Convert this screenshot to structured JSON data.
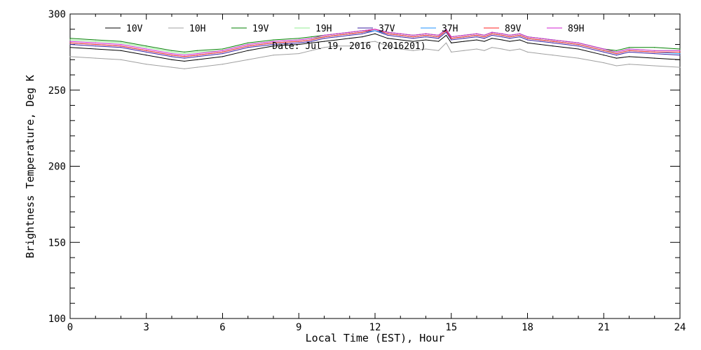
{
  "chart_data": {
    "type": "line",
    "annotation": "Date: Jul 19, 2016 (2016201)",
    "xlabel": "Local Time (EST), Hour",
    "ylabel": "Brightness Temperature, Deg K",
    "xlim": [
      0,
      24
    ],
    "ylim": [
      100,
      300
    ],
    "xticks": [
      0,
      3,
      6,
      9,
      12,
      15,
      18,
      21,
      24
    ],
    "xtick_labels": [
      "0",
      "3",
      "6",
      "9",
      "12",
      "15",
      "18",
      "21",
      "24"
    ],
    "yticks": [
      100,
      150,
      200,
      250,
      300
    ],
    "ytick_labels": [
      "100",
      "150",
      "200",
      "250",
      "300"
    ],
    "grid": false,
    "legend_position": "top",
    "x": [
      0,
      1,
      2,
      3,
      4,
      4.5,
      5,
      6,
      7,
      8,
      9,
      9.5,
      10,
      10.5,
      11,
      11.5,
      12,
      12.5,
      13,
      13.5,
      14,
      14.5,
      14.8,
      15,
      15.5,
      16,
      16.3,
      16.6,
      17,
      17.3,
      17.7,
      18,
      18.5,
      19,
      20,
      21,
      21.5,
      22,
      23,
      24
    ],
    "series": [
      {
        "name": "10V",
        "color": "#000000",
        "values": [
          278,
          277,
          276,
          273,
          270,
          269,
          270,
          272,
          276,
          279,
          280,
          281,
          282,
          283,
          284,
          285,
          287,
          284,
          283,
          282,
          283,
          282,
          286,
          281,
          282,
          283,
          282,
          284,
          283,
          282,
          283,
          281,
          280,
          279,
          277,
          273,
          271,
          272,
          271,
          270
        ]
      },
      {
        "name": "10H",
        "color": "#a0a0a0",
        "values": [
          272,
          271,
          270,
          267,
          265,
          264,
          265,
          267,
          270,
          273,
          274,
          276,
          278,
          279,
          279,
          281,
          282,
          279,
          277,
          276,
          277,
          276,
          281,
          275,
          276,
          277,
          276,
          278,
          277,
          276,
          277,
          275,
          274,
          273,
          271,
          268,
          266,
          267,
          266,
          265
        ]
      },
      {
        "name": "19V",
        "color": "#008000",
        "values": [
          284,
          283,
          282,
          279,
          276,
          275,
          276,
          277,
          281,
          283,
          284,
          285,
          286,
          287,
          288,
          289,
          290,
          288,
          287,
          286,
          287,
          286,
          290,
          285,
          286,
          287,
          286,
          288,
          287,
          286,
          287,
          285,
          284,
          283,
          281,
          277,
          276,
          278,
          278,
          277
        ]
      },
      {
        "name": "19H",
        "color": "#90ee90",
        "values": [
          283,
          282,
          281,
          278,
          275,
          274,
          275,
          276,
          280,
          282,
          283,
          284,
          285,
          286,
          287,
          288,
          289,
          287,
          286,
          285,
          286,
          285,
          289,
          284,
          285,
          286,
          285,
          287,
          286,
          285,
          286,
          284,
          283,
          282,
          280,
          276,
          275,
          277,
          276,
          276
        ]
      },
      {
        "name": "37V",
        "color": "#3a1fa0",
        "values": [
          280,
          279,
          278,
          275,
          272,
          271,
          272,
          274,
          278,
          280,
          281,
          282,
          284,
          285,
          286,
          287,
          289,
          286,
          285,
          284,
          285,
          284,
          288,
          283,
          284,
          285,
          284,
          286,
          285,
          284,
          285,
          283,
          282,
          281,
          279,
          275,
          273,
          275,
          274,
          273
        ]
      },
      {
        "name": "37H",
        "color": "#1e90ff",
        "values": [
          281,
          280,
          279,
          276,
          273,
          272,
          273,
          275,
          279,
          281,
          282,
          283,
          285,
          286,
          287,
          288,
          289,
          287,
          286,
          285,
          286,
          285,
          289,
          284,
          285,
          286,
          285,
          287,
          286,
          285,
          286,
          284,
          283,
          282,
          280,
          276,
          274,
          276,
          275,
          274
        ]
      },
      {
        "name": "89V",
        "color": "#ff2020",
        "values": [
          281,
          280,
          279,
          276,
          273,
          272,
          273,
          275,
          279,
          281,
          282,
          283,
          285,
          286,
          287,
          288,
          290,
          287,
          286,
          285,
          286,
          285,
          289,
          284,
          285,
          286,
          285,
          287,
          286,
          285,
          286,
          284,
          283,
          282,
          280,
          276,
          274,
          276,
          275,
          275
        ]
      },
      {
        "name": "89H",
        "color": "#d020d0",
        "values": [
          282,
          281,
          280,
          277,
          274,
          273,
          274,
          276,
          280,
          282,
          283,
          284,
          286,
          287,
          288,
          289,
          290,
          288,
          287,
          286,
          287,
          286,
          290,
          285,
          286,
          287,
          286,
          288,
          287,
          286,
          287,
          285,
          284,
          283,
          281,
          277,
          275,
          277,
          276,
          276
        ]
      }
    ]
  }
}
